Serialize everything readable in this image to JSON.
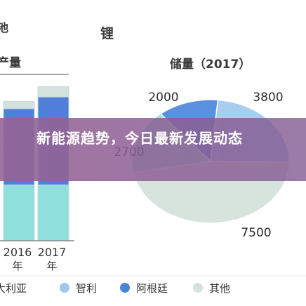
{
  "headline": "新能源趋势，今日最新发展动态",
  "colors": {
    "australia": "#8fe0dc",
    "chile": "#9cc7ee",
    "argentina": "#4a84d8",
    "other": "#d4e2dc",
    "banner": "#8e5f93"
  },
  "chart_data": [
    {
      "type": "bar",
      "title_parts": [
        "池",
        "产量"
      ],
      "categories": [
        "2016\n年",
        "2017\n年"
      ],
      "category_labels": [
        {
          "year": "2016",
          "unit": "年"
        },
        {
          "year": "2017",
          "unit": "年"
        }
      ],
      "series": [
        {
          "name": "澳大利亚",
          "values": [
            38,
            38
          ]
        },
        {
          "name": "智利",
          "values": [
            0,
            0
          ]
        },
        {
          "name": "阿根廷",
          "values": [
            52,
            60
          ]
        },
        {
          "name": "其他",
          "values": [
            5,
            7
          ]
        }
      ],
      "ylim": [
        0,
        110
      ]
    },
    {
      "type": "pie",
      "title": "锂",
      "subtitle": "储量（2017）",
      "slices": [
        {
          "name": "阿根廷",
          "value": 2000,
          "label": "2000"
        },
        {
          "name": "智利",
          "value": 3800,
          "label": "3800"
        },
        {
          "name": "其他",
          "value": 7500,
          "label": "7500"
        },
        {
          "name": "澳大利亚",
          "value": 2700,
          "label": "2700"
        }
      ]
    }
  ],
  "legend": [
    {
      "name": "澳大利亚",
      "color": "#8fe0dc"
    },
    {
      "name": "智利",
      "color": "#9cc7ee"
    },
    {
      "name": "阿根廷",
      "color": "#4a84d8"
    },
    {
      "name": "其他",
      "color": "#d4e2dc"
    }
  ]
}
